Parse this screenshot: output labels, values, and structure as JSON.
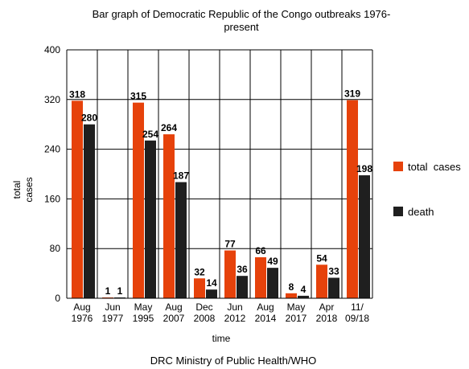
{
  "chart_data": {
    "type": "bar",
    "title_lines": [
      "Bar graph of Democratic Republic of the Congo outbreaks 1976-",
      "present"
    ],
    "xlabel": "time",
    "ylabel_lines": [
      "total",
      "cases"
    ],
    "source": "DRC Ministry of Public Health/WHO",
    "ylim": [
      0,
      400
    ],
    "yticks": [
      "0",
      "80",
      "160",
      "240",
      "320",
      "400"
    ],
    "grid": true,
    "legend_position": "right",
    "categories": [
      [
        "Aug",
        "1976"
      ],
      [
        "Jun",
        "1977"
      ],
      [
        "May",
        "1995"
      ],
      [
        "Aug",
        "2007"
      ],
      [
        "Dec",
        "2008"
      ],
      [
        "Jun",
        "2012"
      ],
      [
        "Aug",
        "2014"
      ],
      [
        "May",
        "2017"
      ],
      [
        "Apr",
        "2018"
      ],
      [
        "11/",
        "09/18"
      ]
    ],
    "series": [
      {
        "name": "total  cases",
        "color": "#e6420b",
        "values": [
          318,
          1,
          315,
          264,
          32,
          77,
          66,
          8,
          54,
          319
        ]
      },
      {
        "name": "death",
        "color": "#1f1f1f",
        "values": [
          280,
          1,
          254,
          187,
          14,
          36,
          49,
          4,
          33,
          198
        ]
      }
    ]
  }
}
